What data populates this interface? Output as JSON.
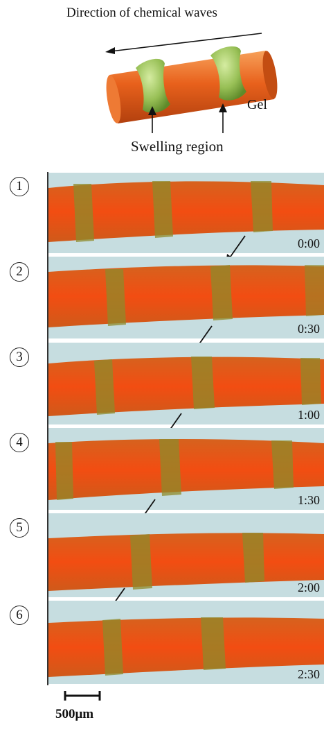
{
  "schematic": {
    "title": "Direction of chemical waves",
    "gel_label": "Gel",
    "swelling_label": "Swelling region"
  },
  "panels": [
    {
      "number": "1",
      "time": "0:00"
    },
    {
      "number": "2",
      "time": "0:30"
    },
    {
      "number": "3",
      "time": "1:00"
    },
    {
      "number": "4",
      "time": "1:30"
    },
    {
      "number": "5",
      "time": "2:00"
    },
    {
      "number": "6",
      "time": "2:30"
    }
  ],
  "scale_bar": {
    "label": "500μm"
  },
  "colors": {
    "gel_orange": "#e8521c",
    "swelling_green": "#8fae3c",
    "background": "#c6dde0"
  }
}
